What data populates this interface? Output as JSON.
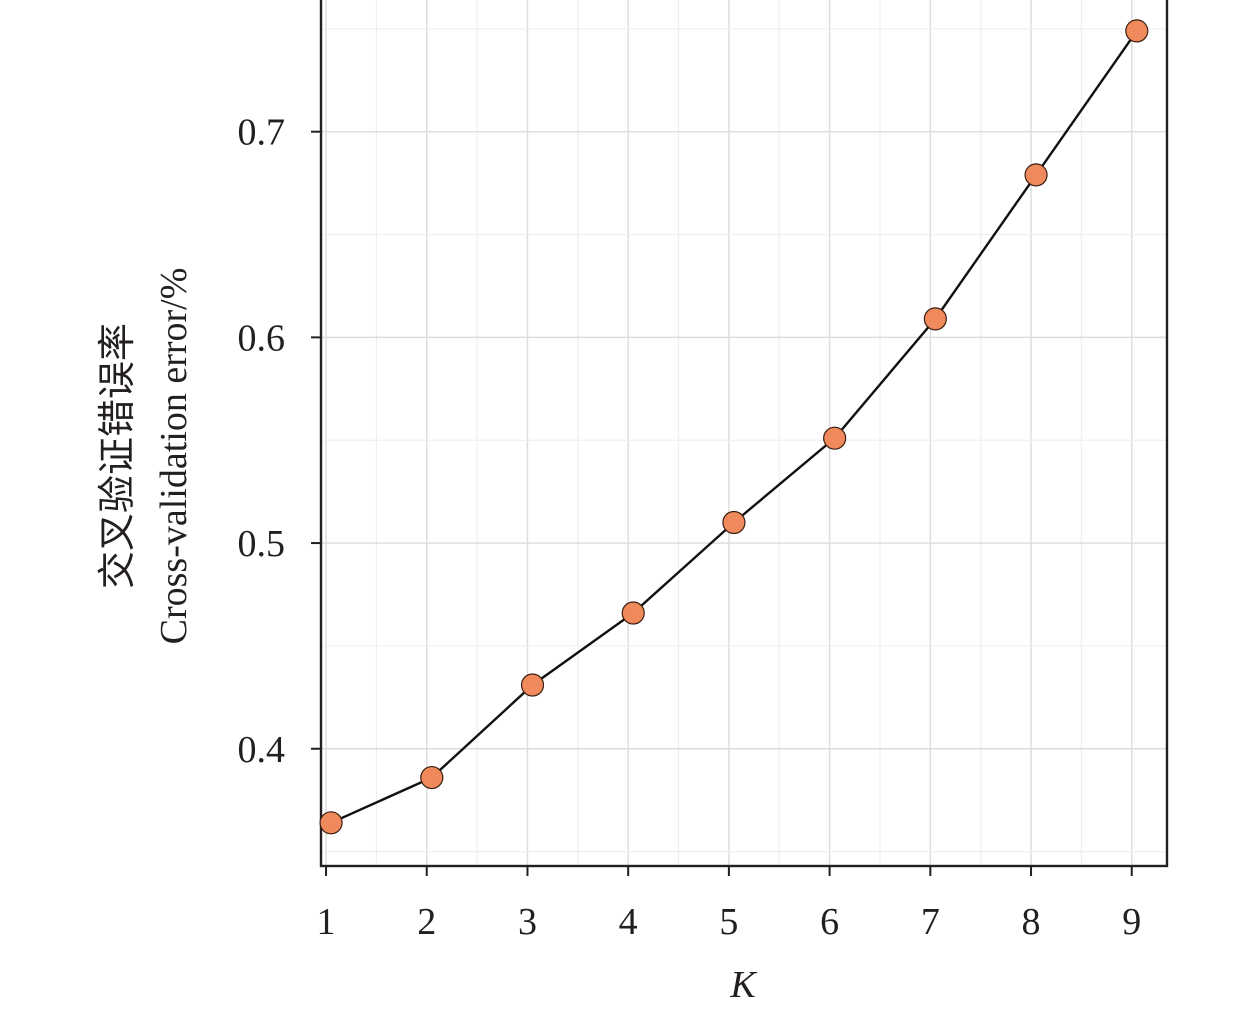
{
  "chart_data": {
    "type": "line",
    "x": [
      1,
      2,
      3,
      4,
      5,
      6,
      7,
      8,
      9
    ],
    "series": [
      {
        "values": [
          0.364,
          0.386,
          0.431,
          0.466,
          0.51,
          0.551,
          0.609,
          0.679,
          0.749
        ]
      }
    ],
    "xlabel": "K",
    "ylabel_zh": "交叉验证错误率",
    "ylabel_en": "Cross-validation error/%",
    "x_ticks": [
      "1",
      "2",
      "3",
      "4",
      "5",
      "6",
      "7",
      "8",
      "9"
    ],
    "y_ticks": [
      "0.4",
      "0.5",
      "0.6",
      "0.7"
    ],
    "xlim": [
      0.95,
      9.35
    ],
    "ylim": [
      0.343,
      0.765
    ],
    "grid": true,
    "marker_color": "#f08a5d",
    "line_color": "#111111"
  }
}
